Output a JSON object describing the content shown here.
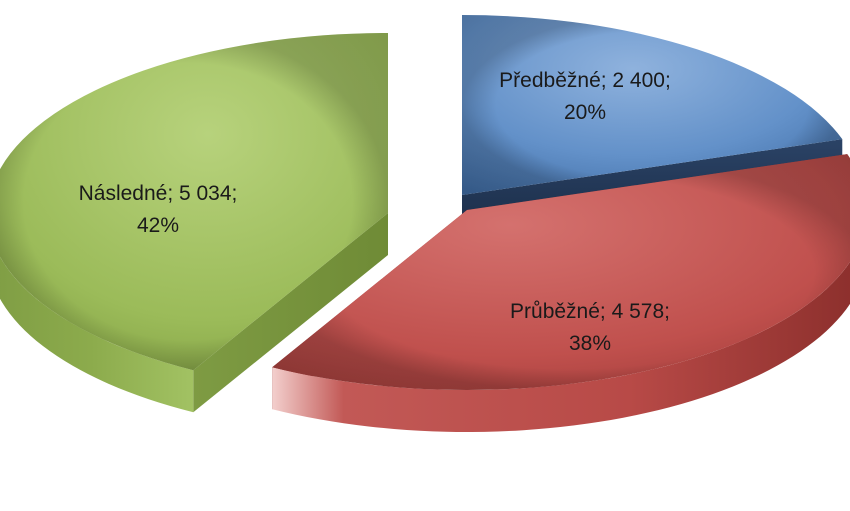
{
  "chart_data": {
    "type": "pie",
    "title": "",
    "legend": "none",
    "slices": [
      {
        "name": "Předběžné",
        "value": 2400,
        "value_label": "2 400",
        "percent_label": "20%",
        "color": "#5b88bf",
        "side_color": "#1f3352"
      },
      {
        "name": "Průběžné",
        "value": 4578,
        "value_label": "4 578",
        "percent_label": "38%",
        "color": "#c0504d",
        "side_color": "#8e2f2c"
      },
      {
        "name": "Následné",
        "value": 5034,
        "value_label": "5 034",
        "percent_label": "42%",
        "color": "#9bbb59",
        "side_color": "#6d8a35"
      }
    ]
  }
}
